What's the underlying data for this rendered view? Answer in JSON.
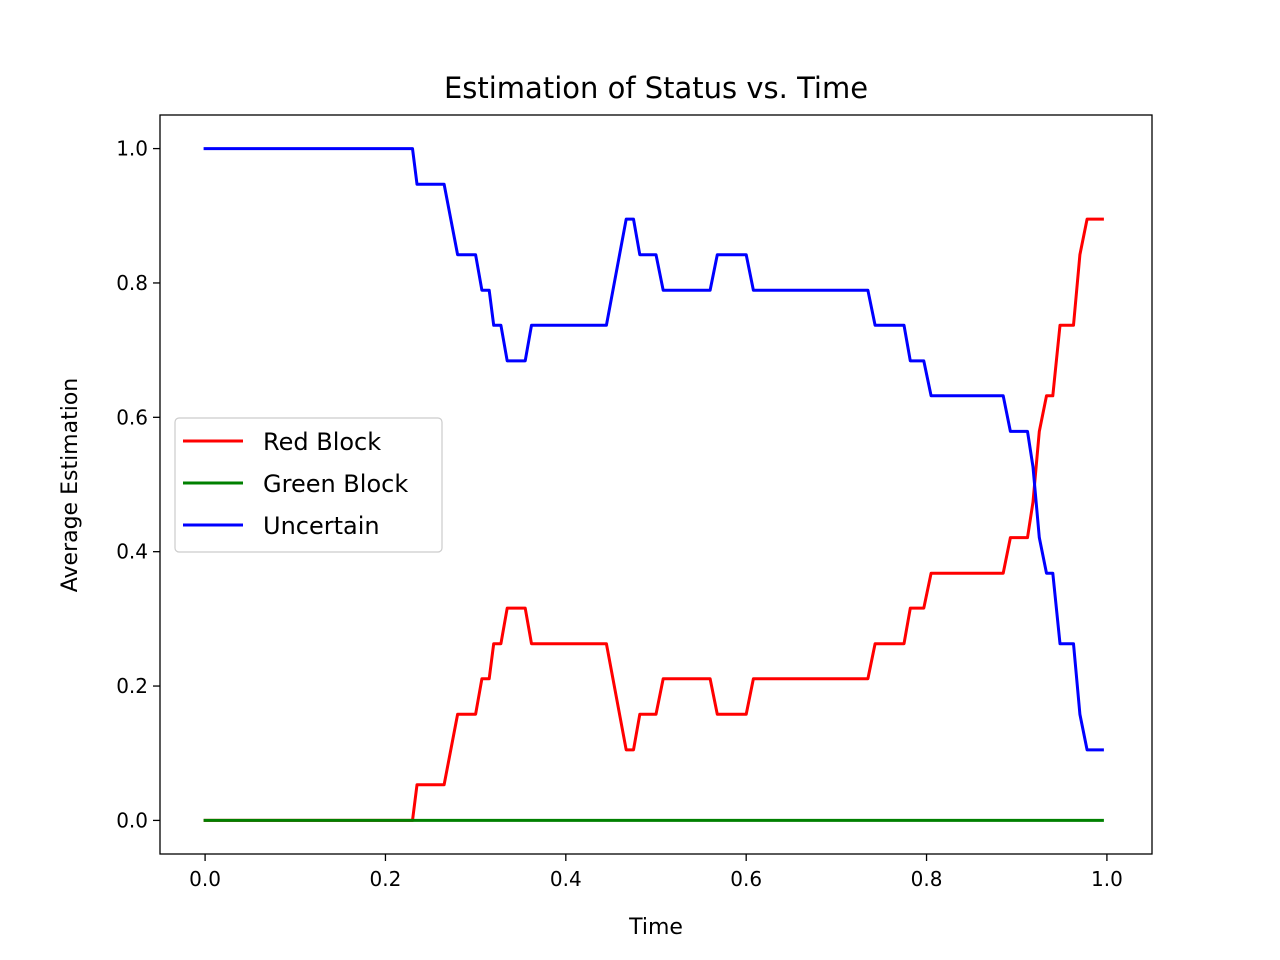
{
  "chart_data": {
    "type": "line",
    "title": "Estimation of Status vs. Time",
    "xlabel": "Time",
    "ylabel": "Average Estimation",
    "xlim": [
      -0.05,
      1.05
    ],
    "ylim": [
      -0.05,
      1.05
    ],
    "xticks": [
      0.0,
      0.2,
      0.4,
      0.6,
      0.8,
      1.0
    ],
    "xtick_labels": [
      "0.0",
      "0.2",
      "0.4",
      "0.6",
      "0.8",
      "1.0"
    ],
    "yticks": [
      0.0,
      0.2,
      0.4,
      0.6,
      0.8,
      1.0
    ],
    "ytick_labels": [
      "0.0",
      "0.2",
      "0.4",
      "0.6",
      "0.8",
      "1.0"
    ],
    "grid": false,
    "legend_position": "center-left",
    "series": [
      {
        "name": "Red Block",
        "color": "#ff0000",
        "x": [
          0.0,
          0.23,
          0.235,
          0.265,
          0.28,
          0.3,
          0.307,
          0.315,
          0.32,
          0.328,
          0.335,
          0.355,
          0.362,
          0.445,
          0.467,
          0.475,
          0.482,
          0.5,
          0.508,
          0.56,
          0.568,
          0.6,
          0.608,
          0.735,
          0.743,
          0.775,
          0.782,
          0.797,
          0.805,
          0.885,
          0.893,
          0.912,
          0.918,
          0.925,
          0.933,
          0.94,
          0.948,
          0.963,
          0.97,
          0.978,
          0.995
        ],
        "y": [
          0.0,
          0.0,
          0.053,
          0.053,
          0.158,
          0.158,
          0.211,
          0.211,
          0.263,
          0.263,
          0.316,
          0.316,
          0.263,
          0.263,
          0.105,
          0.105,
          0.158,
          0.158,
          0.211,
          0.211,
          0.158,
          0.158,
          0.211,
          0.211,
          0.263,
          0.263,
          0.316,
          0.316,
          0.368,
          0.368,
          0.421,
          0.421,
          0.474,
          0.579,
          0.632,
          0.632,
          0.737,
          0.737,
          0.842,
          0.895,
          0.895
        ]
      },
      {
        "name": "Green Block",
        "color": "#008000",
        "x": [
          0.0,
          0.995
        ],
        "y": [
          0.0,
          0.0
        ]
      },
      {
        "name": "Uncertain",
        "color": "#0000ff",
        "x": [
          0.0,
          0.23,
          0.235,
          0.265,
          0.28,
          0.3,
          0.307,
          0.315,
          0.32,
          0.328,
          0.335,
          0.355,
          0.362,
          0.445,
          0.467,
          0.475,
          0.482,
          0.5,
          0.508,
          0.56,
          0.568,
          0.6,
          0.608,
          0.735,
          0.743,
          0.775,
          0.782,
          0.797,
          0.805,
          0.885,
          0.893,
          0.912,
          0.918,
          0.925,
          0.933,
          0.94,
          0.948,
          0.963,
          0.97,
          0.978,
          0.995
        ],
        "y": [
          1.0,
          1.0,
          0.947,
          0.947,
          0.842,
          0.842,
          0.789,
          0.789,
          0.737,
          0.737,
          0.684,
          0.684,
          0.737,
          0.737,
          0.895,
          0.895,
          0.842,
          0.842,
          0.789,
          0.789,
          0.842,
          0.842,
          0.789,
          0.789,
          0.737,
          0.737,
          0.684,
          0.684,
          0.632,
          0.632,
          0.579,
          0.579,
          0.526,
          0.421,
          0.368,
          0.368,
          0.263,
          0.263,
          0.158,
          0.105,
          0.105
        ]
      }
    ]
  }
}
